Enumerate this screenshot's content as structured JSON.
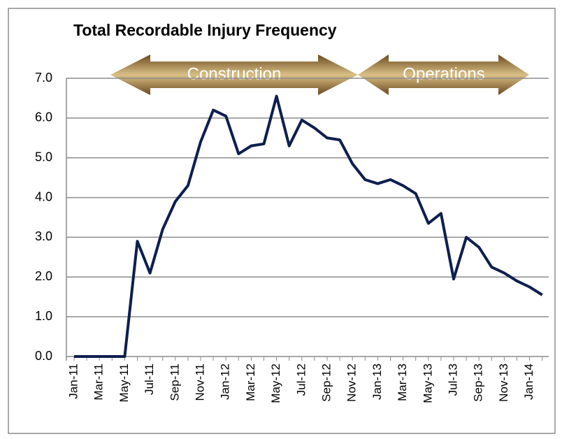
{
  "chart_data": {
    "type": "line",
    "title": "Total Recordable Injury Frequency",
    "annotations": [
      "Construction",
      "Operations"
    ],
    "categories": [
      "Jan-11",
      null,
      "Mar-11",
      null,
      "May-11",
      null,
      "Jul-11",
      null,
      "Sep-11",
      null,
      "Nov-11",
      null,
      "Jan-12",
      null,
      "Mar-12",
      null,
      "May-12",
      null,
      "Jul-12",
      null,
      "Sep-12",
      null,
      "Nov-12",
      null,
      "Jan-13",
      null,
      "Mar-13",
      null,
      "May-13",
      null,
      "Jul-13",
      null,
      "Sep-13",
      null,
      "Nov-13",
      null,
      "Jan-14",
      null
    ],
    "values": [
      0,
      0,
      0,
      0,
      0,
      2.9,
      2.1,
      3.2,
      3.9,
      4.3,
      5.4,
      6.2,
      6.05,
      5.1,
      5.3,
      5.35,
      6.55,
      5.3,
      5.95,
      5.75,
      5.5,
      5.45,
      4.85,
      4.45,
      4.35,
      4.45,
      4.3,
      4.1,
      3.35,
      3.6,
      1.95,
      3.0,
      2.75,
      2.25,
      2.1,
      1.9,
      1.75,
      1.55
    ],
    "color": "#0d1f4f",
    "ylim": [
      0,
      7
    ],
    "yticks": [
      {
        "value": 0,
        "label": "0.0"
      },
      {
        "value": 1,
        "label": "1.0"
      },
      {
        "value": 2,
        "label": "2.0"
      },
      {
        "value": 3,
        "label": "3.0"
      },
      {
        "value": 4,
        "label": "4.0"
      },
      {
        "value": 5,
        "label": "5.0"
      },
      {
        "value": 6,
        "label": "6.0"
      },
      {
        "value": 7,
        "label": "7.0"
      }
    ],
    "grid": true
  }
}
